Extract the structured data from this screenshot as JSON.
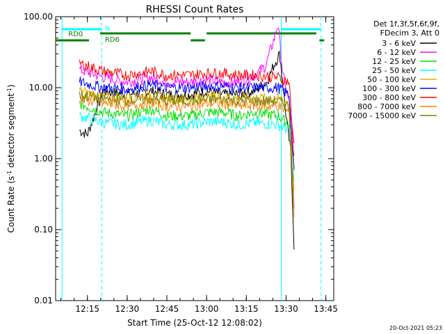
{
  "chart_data": {
    "type": "line",
    "title": "RHESSI Count Rates",
    "xlabel": "Start Time (25-Oct-12 12:08:02)",
    "ylabel_main": "Count Rate (s",
    "ylabel_sup": "-1",
    "ylabel_tail": " detector segment",
    "ylabel_sup2": "-1",
    "ylabel_close": ")",
    "y_scale": "log",
    "ylim": [
      0.01,
      100
    ],
    "xlim_minutes": [
      12.05,
      13.8
    ],
    "x_tick_labels": [
      "12:15",
      "12:30",
      "12:45",
      "13:00",
      "13:15",
      "13:30",
      "13:45"
    ],
    "x_tick_values_hours": [
      12.25,
      12.5,
      12.75,
      13.0,
      13.25,
      13.5,
      13.75
    ],
    "y_tick_labels": [
      "100.00",
      "10.00",
      "1.00",
      "0.10",
      "0.01"
    ],
    "y_tick_values": [
      100,
      10,
      1,
      0.1,
      0.01
    ],
    "legend": {
      "header_line1": "Det 1f,3f,5f,6f,9f,",
      "header_line2": "FDecim 3, Att 0",
      "entries": [
        {
          "label": "3 - 6 keV",
          "color": "#000000"
        },
        {
          "label": "6 - 12 keV",
          "color": "#ff00ff"
        },
        {
          "label": "12 - 25 keV",
          "color": "#00dd00"
        },
        {
          "label": "25 - 50 keV",
          "color": "#00ffff"
        },
        {
          "label": "50 - 100 keV",
          "color": "#e8b000"
        },
        {
          "label": "100 - 300 keV",
          "color": "#0000ff"
        },
        {
          "label": "300 - 800 keV",
          "color": "#ff0000"
        },
        {
          "label": "800 - 7000 keV",
          "color": "#ff8000"
        },
        {
          "label": "7000 - 15000 keV",
          "color": "#808000"
        }
      ]
    },
    "series": [
      {
        "name": "3 - 6 keV",
        "color": "#000000",
        "points": [
          [
            12.2,
            2.5
          ],
          [
            12.25,
            2.2
          ],
          [
            12.35,
            9
          ],
          [
            12.5,
            8
          ],
          [
            12.65,
            9
          ],
          [
            12.75,
            8
          ],
          [
            12.9,
            8
          ],
          [
            13.0,
            9
          ],
          [
            13.1,
            8
          ],
          [
            13.2,
            8
          ],
          [
            13.3,
            9
          ],
          [
            13.38,
            12
          ],
          [
            13.42,
            20
          ],
          [
            13.46,
            30
          ],
          [
            13.5,
            4
          ],
          [
            13.53,
            1.2
          ],
          [
            13.55,
            0.06
          ]
        ]
      },
      {
        "name": "6 - 12 keV",
        "color": "#ff00ff",
        "points": [
          [
            12.2,
            18
          ],
          [
            12.35,
            14
          ],
          [
            12.5,
            12
          ],
          [
            12.65,
            14
          ],
          [
            12.75,
            12
          ],
          [
            12.9,
            12
          ],
          [
            13.0,
            13
          ],
          [
            13.1,
            12
          ],
          [
            13.2,
            12
          ],
          [
            13.3,
            15
          ],
          [
            13.37,
            20
          ],
          [
            13.42,
            45
          ],
          [
            13.45,
            80
          ],
          [
            13.48,
            15
          ],
          [
            13.52,
            6
          ],
          [
            13.55,
            1.5
          ]
        ]
      },
      {
        "name": "12 - 25 keV",
        "color": "#00dd00",
        "points": [
          [
            12.2,
            6
          ],
          [
            12.35,
            4.5
          ],
          [
            12.5,
            4
          ],
          [
            12.65,
            5
          ],
          [
            12.75,
            4
          ],
          [
            12.9,
            4
          ],
          [
            13.0,
            4.5
          ],
          [
            13.1,
            4.5
          ],
          [
            13.2,
            4
          ],
          [
            13.3,
            4.5
          ],
          [
            13.45,
            4
          ],
          [
            13.52,
            3
          ],
          [
            13.55,
            0.8
          ]
        ]
      },
      {
        "name": "25 - 50 keV",
        "color": "#00ffff",
        "points": [
          [
            12.2,
            4
          ],
          [
            12.35,
            3.2
          ],
          [
            12.5,
            3
          ],
          [
            12.65,
            3.5
          ],
          [
            12.75,
            3
          ],
          [
            12.9,
            3
          ],
          [
            13.0,
            3.3
          ],
          [
            13.1,
            3.3
          ],
          [
            13.2,
            3
          ],
          [
            13.3,
            3.2
          ],
          [
            13.45,
            3
          ],
          [
            13.52,
            2.5
          ],
          [
            13.55,
            0.5
          ]
        ]
      },
      {
        "name": "50 - 100 keV",
        "color": "#e8b000",
        "points": [
          [
            12.2,
            9
          ],
          [
            12.35,
            7.5
          ],
          [
            12.5,
            7
          ],
          [
            12.65,
            8
          ],
          [
            12.75,
            7
          ],
          [
            12.9,
            7
          ],
          [
            13.0,
            7.5
          ],
          [
            13.1,
            7.5
          ],
          [
            13.2,
            7
          ],
          [
            13.3,
            7.2
          ],
          [
            13.45,
            7
          ],
          [
            13.52,
            6
          ],
          [
            13.55,
            0.3
          ]
        ]
      },
      {
        "name": "100 - 300 keV",
        "color": "#0000ff",
        "points": [
          [
            12.2,
            12
          ],
          [
            12.35,
            10
          ],
          [
            12.5,
            9.5
          ],
          [
            12.65,
            11
          ],
          [
            12.75,
            10
          ],
          [
            12.9,
            10
          ],
          [
            13.0,
            10.5
          ],
          [
            13.1,
            10.5
          ],
          [
            13.2,
            10
          ],
          [
            13.3,
            10
          ],
          [
            13.45,
            10
          ],
          [
            13.52,
            8
          ],
          [
            13.55,
            0.6
          ]
        ]
      },
      {
        "name": "300 - 800 keV",
        "color": "#ff0000",
        "points": [
          [
            12.2,
            22
          ],
          [
            12.35,
            17
          ],
          [
            12.5,
            15
          ],
          [
            12.65,
            17
          ],
          [
            12.75,
            15
          ],
          [
            12.9,
            15
          ],
          [
            13.0,
            16
          ],
          [
            13.1,
            16
          ],
          [
            13.2,
            15
          ],
          [
            13.3,
            15
          ],
          [
            13.45,
            14
          ],
          [
            13.52,
            12
          ],
          [
            13.55,
            1.0
          ]
        ]
      },
      {
        "name": "800 - 7000 keV",
        "color": "#ff8000",
        "points": [
          [
            12.2,
            7
          ],
          [
            12.35,
            6
          ],
          [
            12.5,
            5.5
          ],
          [
            12.65,
            6.2
          ],
          [
            12.75,
            5.5
          ],
          [
            12.9,
            5.5
          ],
          [
            13.0,
            6
          ],
          [
            13.1,
            6
          ],
          [
            13.2,
            5.5
          ],
          [
            13.3,
            5.6
          ],
          [
            13.45,
            5.5
          ],
          [
            13.52,
            4.5
          ],
          [
            13.55,
            0.15
          ]
        ]
      },
      {
        "name": "7000 - 15000 keV",
        "color": "#808000",
        "points": [
          [
            12.2,
            8
          ],
          [
            12.35,
            7
          ],
          [
            12.5,
            6.5
          ],
          [
            12.65,
            7
          ],
          [
            12.75,
            6.5
          ],
          [
            12.9,
            6.5
          ],
          [
            13.0,
            6.8
          ],
          [
            13.1,
            6.8
          ],
          [
            13.2,
            6.5
          ],
          [
            13.3,
            6.5
          ],
          [
            13.45,
            6.5
          ],
          [
            13.52,
            5.5
          ],
          [
            13.55,
            0.2
          ]
        ]
      }
    ],
    "flags": [
      {
        "label": "N",
        "color": "#00ffff"
      },
      {
        "label": "RD0",
        "color": "#008000"
      },
      {
        "label": "RD6",
        "color": "#008000"
      }
    ],
    "vlines_hours": [
      {
        "x": 12.09,
        "color": "#00ffff",
        "style": "solid"
      },
      {
        "x": 12.34,
        "color": "#00ffff",
        "style": "dashed"
      },
      {
        "x": 13.47,
        "color": "#00ffff",
        "style": "solid"
      },
      {
        "x": 13.72,
        "color": "#00ffff",
        "style": "dashed"
      }
    ],
    "footer_timestamp": "20-Oct-2021 05:23"
  }
}
